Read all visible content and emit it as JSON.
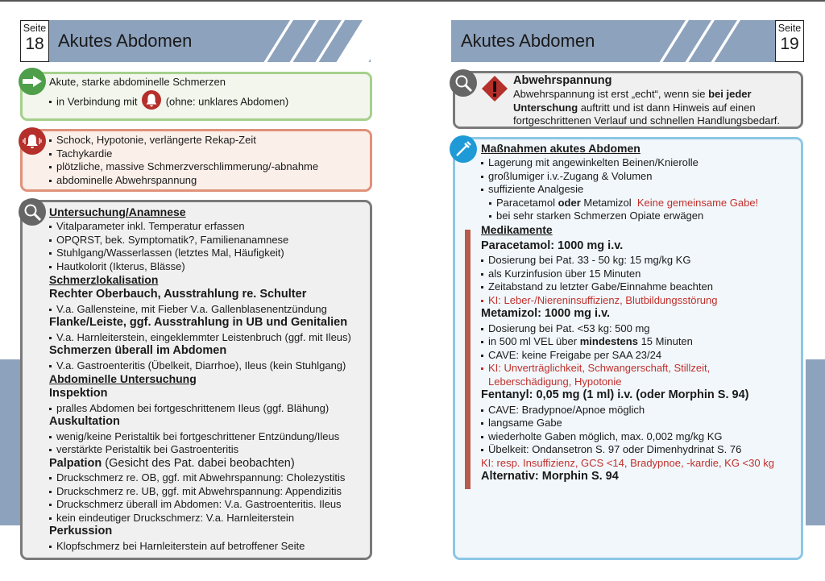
{
  "colors": {
    "band": "#8da2bd",
    "green": "#a5d08c",
    "red_border": "#e0917a",
    "gray_border": "#7a7a7a",
    "blue_border": "#8cc7e6",
    "red_text": "#c0302c"
  },
  "left": {
    "page_label": "Seite",
    "page_number": "18",
    "title": "Akutes Abdomen",
    "green_box": {
      "icon": "arrow-right-icon",
      "lines": [
        {
          "k": "text",
          "s": [
            {
              "t": "Akute, starke abdominelle Schmerzen"
            }
          ]
        },
        {
          "k": "bul",
          "s": [
            {
              "t": "in Verbindung mit "
            },
            {
              "icon": "alarm-bell-icon"
            },
            {
              "t": " (ohne: unklares Abdomen)"
            }
          ]
        }
      ]
    },
    "red_box": {
      "icon": "alarm-bell-icon",
      "lines": [
        {
          "k": "bul",
          "s": [
            {
              "t": "Schock, Hypotonie, verlängerte Rekap-Zeit"
            }
          ]
        },
        {
          "k": "bul",
          "s": [
            {
              "t": "Tachykardie"
            }
          ]
        },
        {
          "k": "bul",
          "s": [
            {
              "t": "plötzliche, massive Schmerzverschlimmerung/-abnahme"
            }
          ]
        },
        {
          "k": "bul",
          "s": [
            {
              "t": "abdominelle Abwehrspannung"
            }
          ]
        }
      ]
    },
    "gray_box": {
      "icon": "magnifier-icon",
      "lines": [
        {
          "k": "h",
          "s": [
            {
              "t": "Untersuchung/Anamnese"
            }
          ]
        },
        {
          "k": "bul",
          "s": [
            {
              "t": "Vitalparameter inkl. Temperatur erfassen"
            }
          ]
        },
        {
          "k": "bul",
          "s": [
            {
              "t": "OPQRST, bek. Symptomatik?, Familienanamnese"
            }
          ]
        },
        {
          "k": "bul",
          "s": [
            {
              "t": "Stuhlgang/Wasserlassen (letztes Mal, Häufigkeit)"
            }
          ]
        },
        {
          "k": "bul",
          "s": [
            {
              "t": "Hautkolorit (Ikterus, Blässe)"
            }
          ]
        },
        {
          "k": "h",
          "s": [
            {
              "t": "Schmerzlokalisation"
            }
          ]
        },
        {
          "k": "sub",
          "s": [
            {
              "t": "Rechter Oberbauch, Ausstrahlung re. Schulter"
            }
          ]
        },
        {
          "k": "bul",
          "s": [
            {
              "t": "V.a. Gallensteine, mit Fieber V.a. Gallenblasenentzündung"
            }
          ]
        },
        {
          "k": "sub",
          "s": [
            {
              "t": "Flanke/Leiste, ggf. Ausstrahlung in UB und Genitalien"
            }
          ]
        },
        {
          "k": "bul",
          "s": [
            {
              "t": "V.a. Harnleiterstein, eingeklemmter Leistenbruch (ggf. mit Ileus)"
            }
          ]
        },
        {
          "k": "sub",
          "s": [
            {
              "t": "Schmerzen überall im Abdomen"
            }
          ]
        },
        {
          "k": "bul",
          "s": [
            {
              "t": "V.a. Gastroenteritis (Übelkeit, Diarrhoe), Ileus (kein Stuhlgang)"
            }
          ]
        },
        {
          "k": "h",
          "s": [
            {
              "t": "Abdominelle Untersuchung"
            }
          ]
        },
        {
          "k": "sub",
          "s": [
            {
              "t": "Inspektion"
            }
          ]
        },
        {
          "k": "bul",
          "s": [
            {
              "t": "pralles Abdomen bei fortgeschrittenem Ileus (ggf. Blähung)"
            }
          ]
        },
        {
          "k": "sub",
          "s": [
            {
              "t": "Auskultation"
            }
          ]
        },
        {
          "k": "bul",
          "s": [
            {
              "t": "wenig/keine Peristaltik bei fortgeschrittener Entzündung/Ileus"
            }
          ]
        },
        {
          "k": "bul",
          "s": [
            {
              "t": "verstärkte Peristaltik bei Gastroenteritis"
            }
          ]
        },
        {
          "k": "sub",
          "s": [
            {
              "t": "Palpation"
            },
            {
              "t": " (Gesicht des Pat. dabei beobachten)",
              "n": true
            }
          ]
        },
        {
          "k": "bul",
          "s": [
            {
              "t": "Druckschmerz re. OB, ggf. mit Abwehrspannung: Cholezystitis"
            }
          ]
        },
        {
          "k": "bul",
          "s": [
            {
              "t": "Druckschmerz re. UB, ggf. mit Abwehrspannung: Appendizitis"
            }
          ]
        },
        {
          "k": "bul",
          "s": [
            {
              "t": "Druckschmerz überall im Abdomen: V.a. Gastroenteritis. Ileus"
            }
          ]
        },
        {
          "k": "bul",
          "s": [
            {
              "t": "kein eindeutiger Druckschmerz: V.a. Harnleiterstein"
            }
          ]
        },
        {
          "k": "sub",
          "s": [
            {
              "t": "Perkussion"
            }
          ]
        },
        {
          "k": "bul",
          "s": [
            {
              "t": "Klopfschmerz bei Harnleiterstein auf betroffener Seite"
            }
          ]
        }
      ]
    }
  },
  "right": {
    "page_label": "Seite",
    "page_number": "19",
    "title": "Akutes Abdomen",
    "gray_box": {
      "icon": "magnifier-icon",
      "warning_icon": "warning-diamond-icon",
      "lines": [
        {
          "k": "subb",
          "s": [
            {
              "t": "Abwehrspannung"
            }
          ]
        },
        {
          "k": "text",
          "s": [
            {
              "t": "Abwehrspannung ist erst „echt“, wenn sie "
            },
            {
              "t": "bei jeder",
              "b": true
            }
          ]
        },
        {
          "k": "text",
          "s": [
            {
              "t": "Unterschung",
              "b": true
            },
            {
              "t": " auftritt und ist dann Hinweis auf einen"
            }
          ]
        },
        {
          "k": "text",
          "s": [
            {
              "t": "fortgeschrittenen Verlauf und schnellen Handlungsbedarf."
            }
          ]
        }
      ]
    },
    "blue_box": {
      "icon": "syringe-icon",
      "lines": [
        {
          "k": "h",
          "s": [
            {
              "t": "Maßnahmen akutes Abdomen"
            }
          ]
        },
        {
          "k": "bul",
          "s": [
            {
              "t": "Lagerung mit angewinkelten Beinen/Knierolle"
            }
          ]
        },
        {
          "k": "bul",
          "s": [
            {
              "t": "großlumiger i.v.-Zugang & Volumen"
            }
          ]
        },
        {
          "k": "bul",
          "s": [
            {
              "t": "suffiziente Analgesie"
            }
          ]
        },
        {
          "k": "bul2",
          "s": [
            {
              "t": "Paracetamol "
            },
            {
              "t": "oder",
              "b": true
            },
            {
              "t": " Metamizol  "
            },
            {
              "t": "Keine gemeinsame Gabe!",
              "r": true
            }
          ]
        },
        {
          "k": "bul2",
          "s": [
            {
              "t": "bei sehr starken Schmerzen Opiate erwägen"
            }
          ]
        },
        {
          "k": "h2",
          "s": [
            {
              "t": "Medikamente"
            }
          ]
        },
        {
          "k": "sub",
          "s": [
            {
              "t": "Paracetamol: 1000 mg i.v."
            }
          ]
        },
        {
          "k": "bul",
          "s": [
            {
              "t": "Dosierung bei Pat. 33 - 50 kg: 15 mg/kg KG"
            }
          ]
        },
        {
          "k": "bul",
          "s": [
            {
              "t": "als Kurzinfusion über 15 Minuten"
            }
          ]
        },
        {
          "k": "bul",
          "s": [
            {
              "t": "Zeitabstand zu letzter Gabe/Einnahme beachten"
            }
          ]
        },
        {
          "k": "bulr",
          "s": [
            {
              "t": "KI: Leber-/Niereninsuffizienz, Blutbildungsstörung",
              "r": true
            }
          ]
        },
        {
          "k": "sub",
          "s": [
            {
              "t": "Metamizol: 1000 mg i.v."
            }
          ]
        },
        {
          "k": "bul",
          "s": [
            {
              "t": "Dosierung bei Pat. <53 kg: 500 mg"
            }
          ]
        },
        {
          "k": "bul",
          "s": [
            {
              "t": "in 500 ml VEL über "
            },
            {
              "t": "mindestens",
              "b": true
            },
            {
              "t": " 15 Minuten"
            }
          ]
        },
        {
          "k": "bul",
          "s": [
            {
              "t": "CAVE: keine Freigabe per SAA 23/24"
            }
          ]
        },
        {
          "k": "bulr",
          "s": [
            {
              "t": "KI: Unverträglichkeit, Schwangerschaft, Stillzeit,",
              "r": true
            }
          ]
        },
        {
          "k": "textr",
          "s": [
            {
              "t": "Leberschädigung, Hypotonie",
              "r": true
            }
          ]
        },
        {
          "k": "sub",
          "s": [
            {
              "t": "Fentanyl: 0,05 mg (1 ml) i.v. (oder Morphin S. 94)"
            }
          ]
        },
        {
          "k": "bul",
          "s": [
            {
              "t": "CAVE: Bradypnoe/Apnoe möglich"
            }
          ]
        },
        {
          "k": "bul",
          "s": [
            {
              "t": "langsame Gabe"
            }
          ]
        },
        {
          "k": "bul",
          "s": [
            {
              "t": "wiederholte Gaben möglich, max. 0,002 mg/kg KG"
            }
          ]
        },
        {
          "k": "bul",
          "s": [
            {
              "t": "Übelkeit: Ondansetron S. 97 oder Dimenhydrinat S. 76"
            }
          ]
        },
        {
          "k": "text",
          "s": [
            {
              "t": "KI: resp. Insuffizienz, GCS <14, Bradypnoe, -kardie, KG <30 kg",
              "r": true
            }
          ]
        },
        {
          "k": "sub",
          "s": [
            {
              "t": "Alternativ: Morphin S. 94"
            }
          ]
        }
      ]
    }
  }
}
